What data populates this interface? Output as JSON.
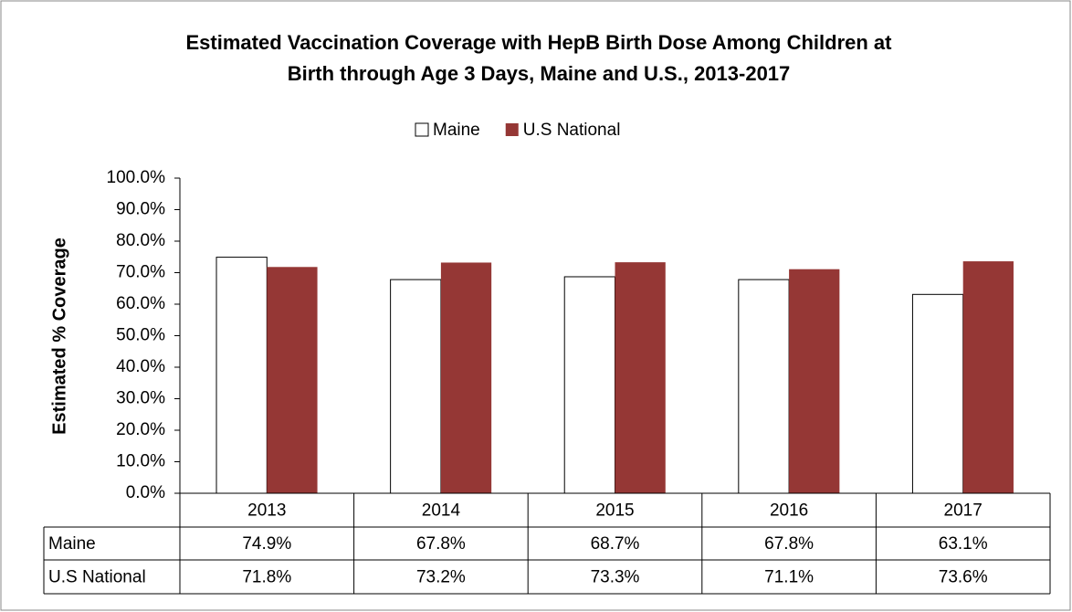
{
  "chart_data": {
    "type": "bar",
    "title": [
      "Estimated Vaccination Coverage with HepB Birth Dose Among Children at",
      "Birth through Age 3 Days, Maine and U.S.,  2013-2017"
    ],
    "y_label": "Estimated % Coverage",
    "categories": [
      "2013",
      "2014",
      "2015",
      "2016",
      "2017"
    ],
    "series": [
      {
        "name": "Maine",
        "color": "#ffffff",
        "values": [
          74.9,
          67.8,
          68.7,
          67.8,
          63.1
        ],
        "value_labels": [
          "74.9%",
          "67.8%",
          "68.7%",
          "67.8%",
          "63.1%"
        ]
      },
      {
        "name": "U.S National",
        "color": "#953735",
        "values": [
          71.8,
          73.2,
          73.3,
          71.1,
          73.6
        ],
        "value_labels": [
          "71.8%",
          "73.2%",
          "73.3%",
          "71.1%",
          "73.6%"
        ]
      }
    ],
    "ylim": [
      0,
      100
    ],
    "yticks": [
      {
        "value": 0,
        "label": "0.0%"
      },
      {
        "value": 10,
        "label": "10.0%"
      },
      {
        "value": 20,
        "label": "20.0%"
      },
      {
        "value": 30,
        "label": "30.0%"
      },
      {
        "value": 40,
        "label": "40.0%"
      },
      {
        "value": 50,
        "label": "50.0%"
      },
      {
        "value": 60,
        "label": "60.0%"
      },
      {
        "value": 70,
        "label": "70.0%"
      },
      {
        "value": 80,
        "label": "80.0%"
      },
      {
        "value": 90,
        "label": "90.0%"
      },
      {
        "value": 100,
        "label": "100.0%"
      }
    ],
    "legend": "top"
  }
}
